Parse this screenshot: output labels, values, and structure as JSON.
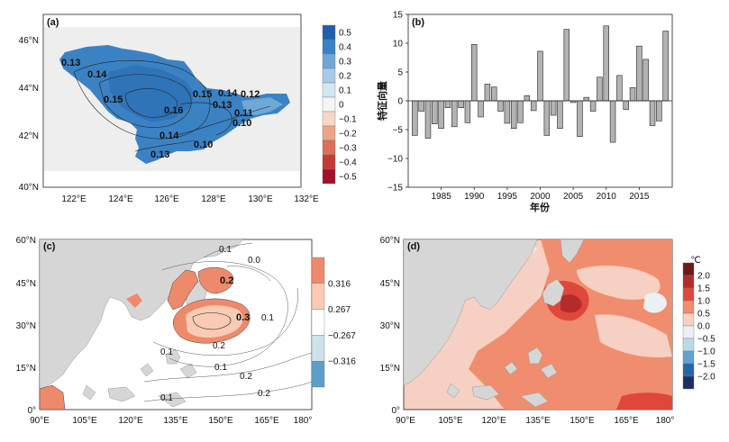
{
  "chart_data": [
    {
      "panel": "(a)",
      "type": "heatmap",
      "x_ticks": [
        "122°E",
        "124°E",
        "126°E",
        "128°E",
        "130°E",
        "132°E"
      ],
      "y_ticks": [
        "46°N",
        "44°N",
        "42°N",
        "40°N"
      ],
      "colorbar_ticks": [
        "0.5",
        "0.4",
        "0.3",
        "0.2",
        "0.1",
        "0",
        "−0.1",
        "−0.2",
        "−0.3",
        "−0.4",
        "−0.5"
      ],
      "colorbar_colors": [
        "#1f5fae",
        "#3b82c4",
        "#6fa8d6",
        "#a6cbe6",
        "#d5e6f3",
        "#f5f5f5",
        "#f7d7c8",
        "#eda487",
        "#de6f56",
        "#c53a35",
        "#a50f2b"
      ],
      "contour_labels": [
        "0.13",
        "0.14",
        "0.15",
        "0.16",
        "0.15",
        "0.14",
        "0.12",
        "0.13",
        "0.11",
        "0.10",
        "0.14",
        "0.10",
        "0.13"
      ],
      "field_color": "#3b82c4"
    },
    {
      "panel": "(b)",
      "type": "bar",
      "ylabel": "特征向量",
      "xlabel": "年份",
      "ylim": [
        -15,
        15
      ],
      "y_ticks": [
        "15",
        "10",
        "5",
        "0",
        "−5",
        "−10",
        "−15"
      ],
      "x_ticks": [
        "1985",
        "1990",
        "1995",
        "2000",
        "2005",
        "2010",
        "2015"
      ],
      "categories": [
        1981,
        1982,
        1983,
        1984,
        1985,
        1986,
        1987,
        1988,
        1989,
        1990,
        1991,
        1992,
        1993,
        1994,
        1995,
        1996,
        1997,
        1998,
        1999,
        2000,
        2001,
        2002,
        2003,
        2004,
        2005,
        2006,
        2007,
        2008,
        2009,
        2010,
        2011,
        2012,
        2013,
        2014,
        2015,
        2016,
        2017,
        2018,
        2019
      ],
      "values": [
        -6.0,
        -1.8,
        -6.5,
        -4.0,
        -4.8,
        -1.2,
        -4.5,
        -1.2,
        -3.8,
        9.8,
        -2.8,
        2.9,
        2.4,
        -1.8,
        -3.9,
        -4.8,
        -3.8,
        0.9,
        -1.7,
        8.6,
        -6.0,
        -2.5,
        -4.8,
        12.4,
        -0.3,
        -6.2,
        0.6,
        -1.8,
        4.1,
        13.0,
        -7.2,
        4.4,
        -1.5,
        2.3,
        9.5,
        7.2,
        -4.3,
        -3.5,
        12.1
      ],
      "bar_color": "#b3b3b3"
    },
    {
      "panel": "(c)",
      "type": "heatmap",
      "x_ticks": [
        "90°E",
        "105°E",
        "120°E",
        "135°E",
        "150°E",
        "165°E",
        "180°"
      ],
      "y_ticks": [
        "60°N",
        "45°N",
        "30°N",
        "15°N",
        "0°"
      ],
      "colorbar_ticks": [
        "0.316",
        "0.267",
        "−0.267",
        "−0.316"
      ],
      "colorbar_colors": [
        "#ed8a6b",
        "#f9cbb5",
        "#ffffff",
        "#cde3ea",
        "#5b9fc9"
      ],
      "contour_labels": [
        "0.1",
        "0.0",
        "0.2",
        "0.3",
        "0.1",
        "0.2",
        "0.1",
        "0.1",
        "0.2",
        "0.1",
        "0.2"
      ]
    },
    {
      "panel": "(d)",
      "type": "heatmap",
      "x_ticks": [
        "90°E",
        "105°E",
        "120°E",
        "135°E",
        "150°E",
        "165°E",
        "180°"
      ],
      "y_ticks": [
        "60°N",
        "45°N",
        "30°N",
        "15°N",
        "0°"
      ],
      "colorbar_unit": "℃",
      "colorbar_ticks": [
        "2.0",
        "1.5",
        "1.0",
        "0.5",
        "0.0",
        "−0.5",
        "−1.0",
        "−1.5",
        "−2.0"
      ],
      "colorbar_colors": [
        "#6b1a1a",
        "#b52a2a",
        "#e0473c",
        "#ef8d6e",
        "#f6d0c2",
        "#eaf0f3",
        "#b9dbe8",
        "#5fa3cf",
        "#2566a8",
        "#1b2f63"
      ]
    }
  ]
}
